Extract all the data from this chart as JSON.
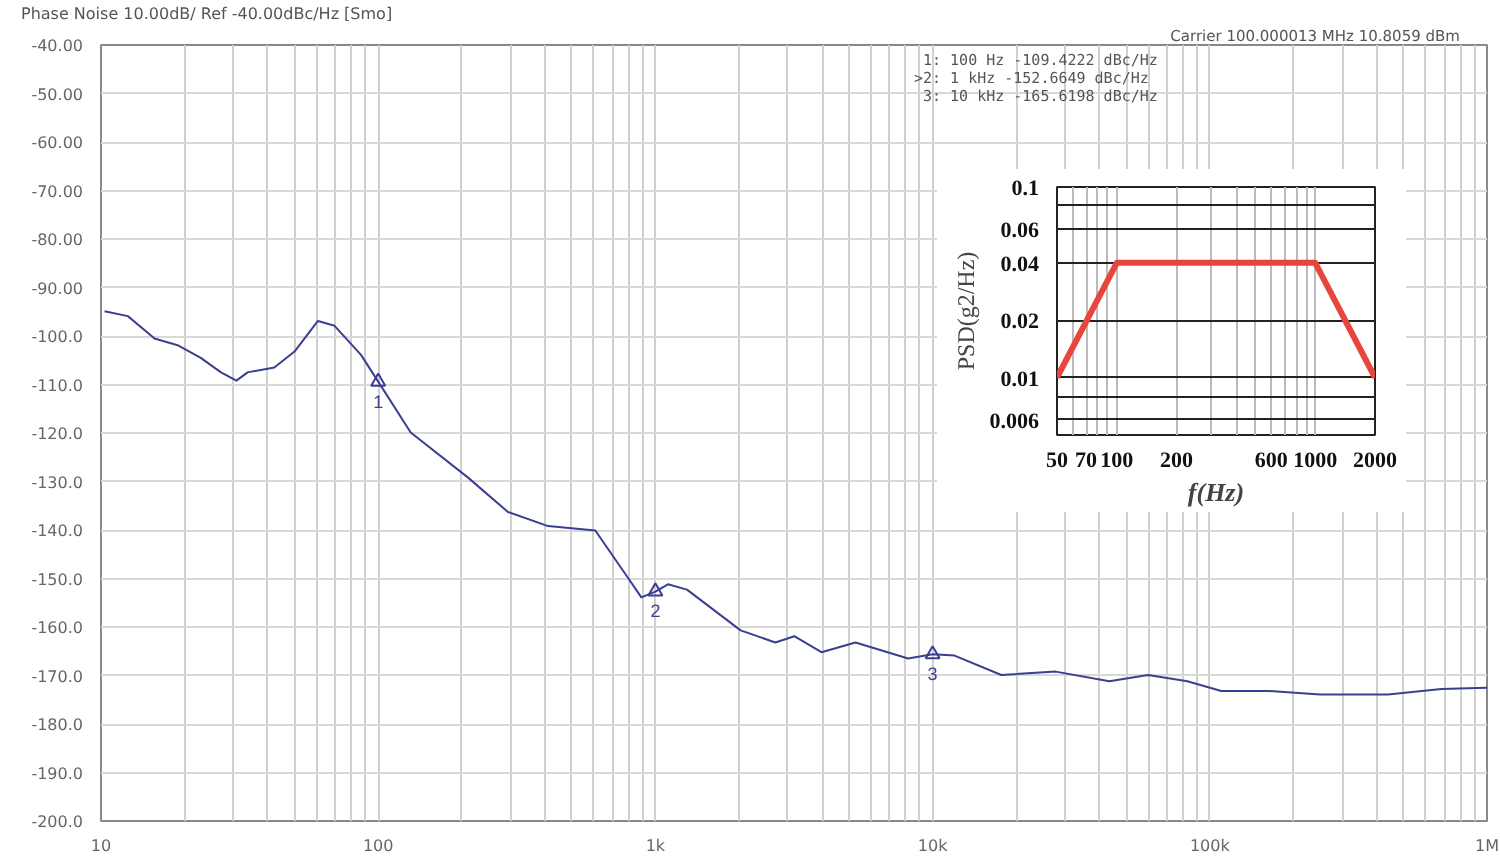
{
  "chart_data": [
    {
      "type": "line",
      "title": "Phase Noise 10.00dB/ Ref -40.00dBc/Hz [Smo]",
      "subtitle": "Carrier 100.000013 MHz     10.8059 dBm",
      "log": "x",
      "grid": true,
      "xlim": [
        10,
        1000000
      ],
      "xticks": [
        {
          "value": 10,
          "label": "10"
        },
        {
          "value": 100,
          "label": "100"
        },
        {
          "value": 1000,
          "label": "1k"
        },
        {
          "value": 10000,
          "label": "10k"
        },
        {
          "value": 100000,
          "label": "100k"
        },
        {
          "value": 1000000,
          "label": "1M"
        }
      ],
      "ylim": [
        -200,
        -40
      ],
      "yticks": [
        {
          "value": -40,
          "label": "-40.00"
        },
        {
          "value": -50,
          "label": "-50.00"
        },
        {
          "value": -60,
          "label": "-60.00"
        },
        {
          "value": -70,
          "label": "-70.00"
        },
        {
          "value": -80,
          "label": "-80.00"
        },
        {
          "value": -90,
          "label": "-90.00"
        },
        {
          "value": -100,
          "label": "-100.0"
        },
        {
          "value": -110,
          "label": "-110.0"
        },
        {
          "value": -120,
          "label": "-120.0"
        },
        {
          "value": -130,
          "label": "-130.0"
        },
        {
          "value": -140,
          "label": "-140.0"
        },
        {
          "value": -150,
          "label": "-150.0"
        },
        {
          "value": -160,
          "label": "-160.0"
        },
        {
          "value": -170,
          "label": "-170.0"
        },
        {
          "value": -180,
          "label": "-180.0"
        },
        {
          "value": -190,
          "label": "-190.0"
        },
        {
          "value": -200,
          "label": "-200.0"
        }
      ],
      "series": [
        {
          "color": "#3a3f8f",
          "x": [
            10.3,
            12.5,
            15.6,
            18.9,
            22.9,
            27.1,
            30.8,
            33.8,
            42.2,
            49.9,
            60.6,
            69.6,
            86.7,
            100,
            131,
            211,
            294,
            410,
            607,
            797,
            890,
            1000,
            1110,
            1300,
            2030,
            2710,
            3170,
            3970,
            5270,
            8160,
            10000,
            12000,
            17700,
            27800,
            43400,
            59900,
            83000,
            110000,
            163000,
            250000,
            440000,
            684000,
            1000000
          ],
          "values": [
            -94.9,
            -95.9,
            -100.5,
            -101.9,
            -104.5,
            -107.5,
            -109.2,
            -107.5,
            -106.5,
            -103.2,
            -96.9,
            -97.9,
            -103.9,
            -109.4,
            -119.9,
            -129.2,
            -136.3,
            -139.2,
            -140.1,
            -149.9,
            -153.9,
            -152.7,
            -151.2,
            -152.3,
            -160.7,
            -163.2,
            -161.9,
            -165.2,
            -163.2,
            -166.5,
            -165.6,
            -165.9,
            -169.9,
            -169.2,
            -171.2,
            -169.9,
            -171.2,
            -173.2,
            -173.2,
            -173.9,
            -173.9,
            -172.8,
            -172.5
          ]
        }
      ],
      "annotations": [
        "1:   100 Hz    -109.4222   dBc/Hz",
        ">2:   1 kHz     -152.6649   dBc/Hz",
        "3:   10 kHz    -165.6198   dBc/Hz",
        {
          "text": "1",
          "x": 100,
          "y": -109.4222
        },
        {
          "text": "2",
          "x": 1000,
          "y": -152.6649
        },
        {
          "text": "3",
          "x": 10000,
          "y": -165.6198
        }
      ]
    },
    {
      "type": "line",
      "xlabel": "f(Hz)",
      "ylabel": "PSD(g2/Hz)",
      "log": "xy",
      "grid": true,
      "xlim": [
        50,
        2000
      ],
      "xticks": [
        50,
        70,
        100,
        200,
        600,
        1000,
        2000
      ],
      "ylim": [
        0.005,
        0.1
      ],
      "yticks": [
        0.1,
        {
          "value": 0.08,
          "label": null
        },
        0.06,
        0.04,
        0.02,
        0.01,
        {
          "value": 0.008,
          "label": null
        },
        0.006
      ],
      "series": [
        {
          "color": "#e8463c",
          "x": [
            50,
            100,
            1000,
            2000
          ],
          "values": [
            0.01,
            0.04,
            0.04,
            0.01
          ]
        }
      ]
    }
  ]
}
